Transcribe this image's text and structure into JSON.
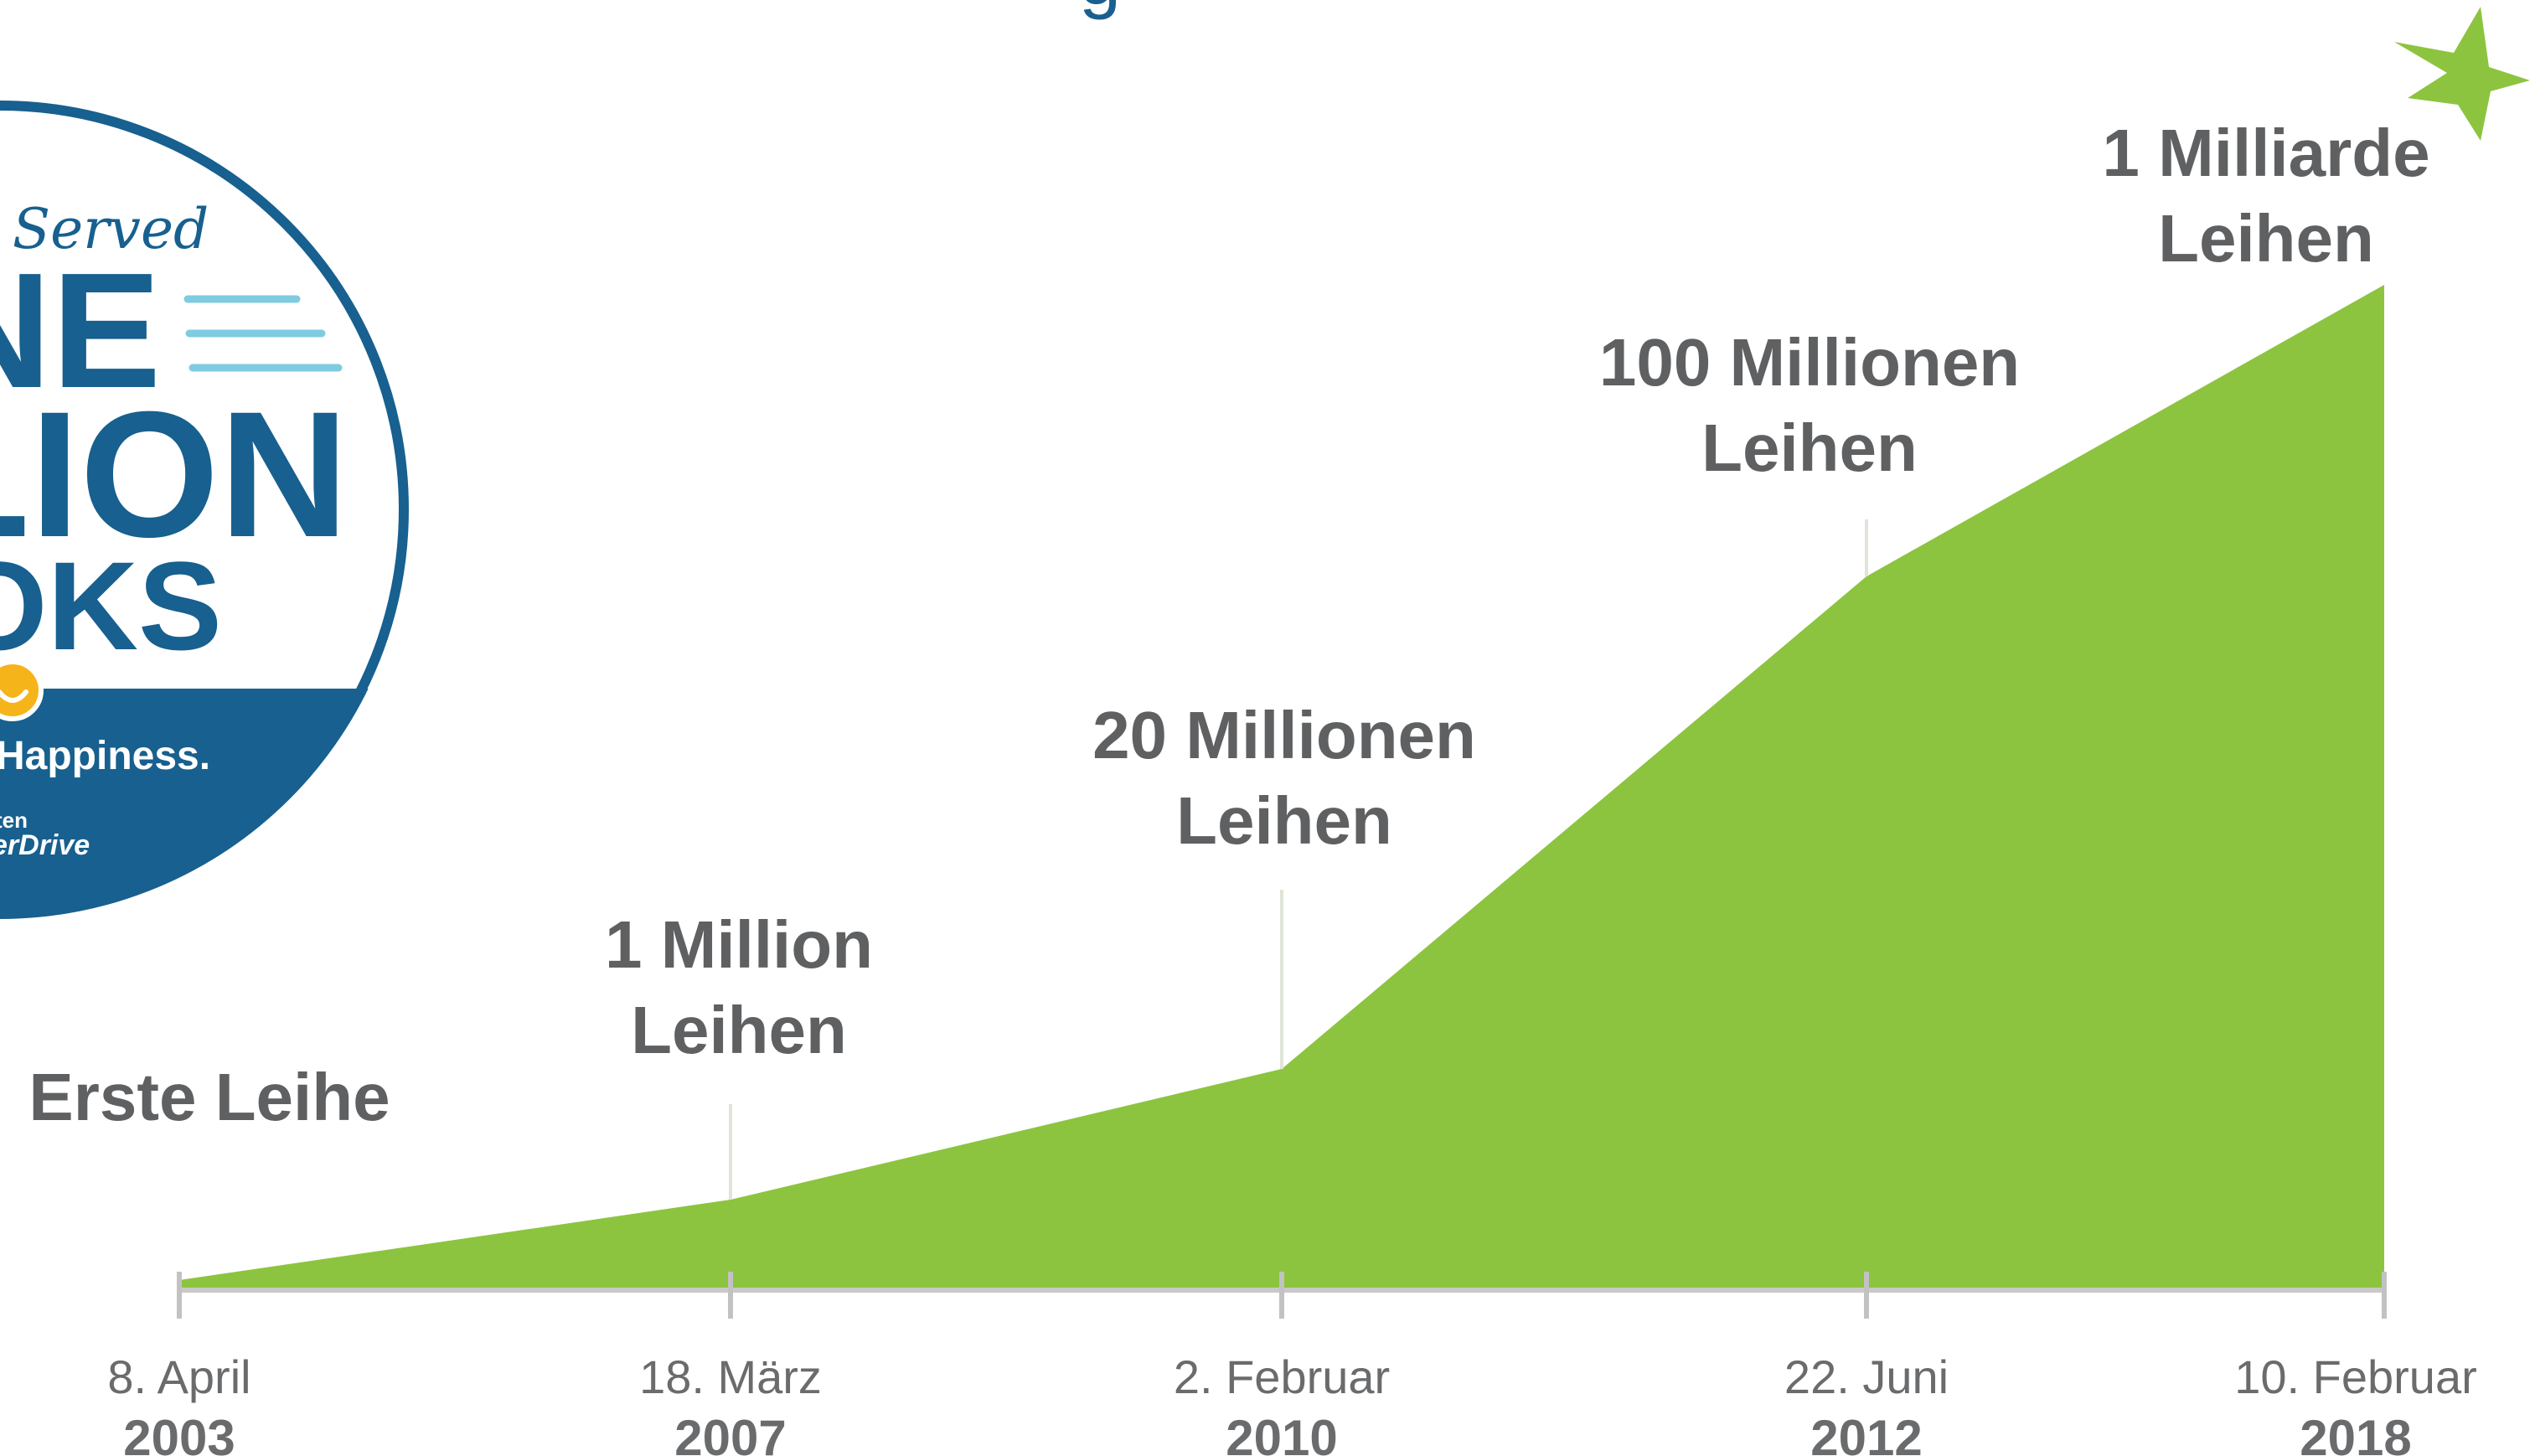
{
  "header": {
    "cropped_title_fragment": "g"
  },
  "badge": {
    "line_top": "s Served",
    "line_one": "NE",
    "line_two": "LION",
    "line_three": "OKS",
    "tagline": "Happiness.",
    "brand_small": "ten",
    "brand": "erDrive"
  },
  "colors": {
    "area": "#8cc43f",
    "badge_blue": "#17608f",
    "badge_light_lines": "#7fcbe0",
    "text_gray": "#5f6062",
    "axis": "#c8c8c8",
    "star": "#8cc43f",
    "smile": "#f6b41b"
  },
  "decorations": {
    "corner_icon": "star-icon",
    "badge_icon": "smiley-icon"
  },
  "chart_data": {
    "type": "area",
    "x": [
      "2003-04-08",
      "2007-03-18",
      "2010-02-02",
      "2012-06-22",
      "2018-02-10"
    ],
    "tick_labels": [
      {
        "date": "8. April",
        "year": "2003"
      },
      {
        "date": "18. März",
        "year": "2007"
      },
      {
        "date": "2. Februar",
        "year": "2010"
      },
      {
        "date": "22. Juni",
        "year": "2012"
      },
      {
        "date": "10. Februar",
        "year": "2018"
      }
    ],
    "annotations": [
      {
        "lines": [
          "Erste Leihe"
        ]
      },
      {
        "lines": [
          "1 Million",
          "Leihen"
        ]
      },
      {
        "lines": [
          "20 Millionen",
          "Leihen"
        ]
      },
      {
        "lines": [
          "100 Millionen",
          "Leihen"
        ]
      },
      {
        "lines": [
          "1 Milliarde",
          "Leihen"
        ]
      }
    ],
    "relative_level": [
      0.01,
      0.09,
      0.22,
      0.71,
      1.0
    ],
    "grid": false,
    "legend": "none"
  }
}
